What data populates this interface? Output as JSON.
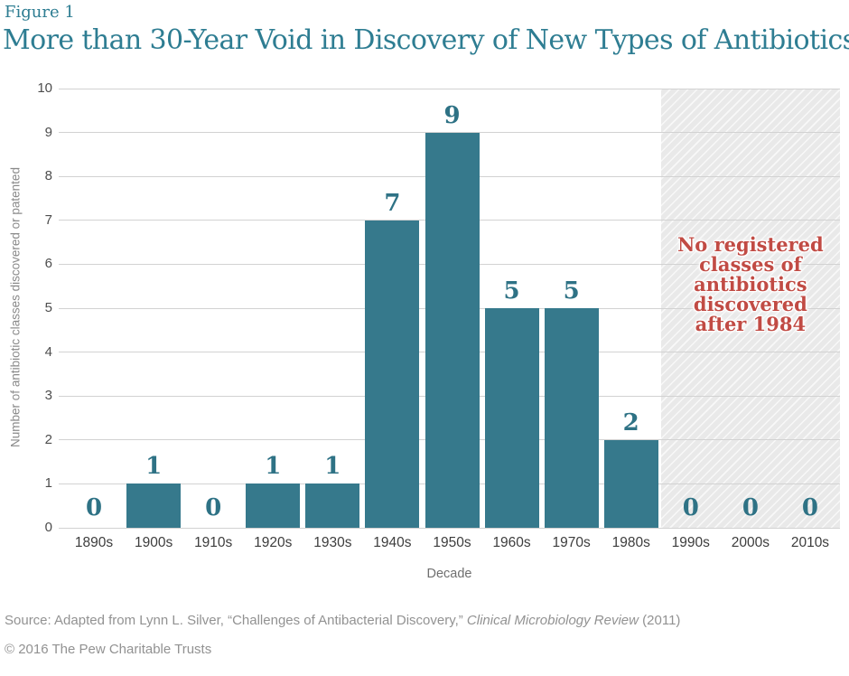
{
  "figure": {
    "label": "Figure 1",
    "title": "More than 30-Year Void in Discovery of New Types of Antibiotics",
    "copyright": "© 2016 The Pew Charitable Trusts"
  },
  "chart_data": {
    "type": "bar",
    "categories": [
      "1890s",
      "1900s",
      "1910s",
      "1920s",
      "1930s",
      "1940s",
      "1950s",
      "1960s",
      "1970s",
      "1980s",
      "1990s",
      "2000s",
      "2010s"
    ],
    "values": [
      0,
      1,
      0,
      1,
      1,
      7,
      9,
      5,
      5,
      2,
      0,
      0,
      0
    ],
    "xlabel": "Decade",
    "ylabel": "Number of antibiotic classes discovered or patented",
    "ylim": [
      0,
      10
    ],
    "yticks": [
      0,
      1,
      2,
      3,
      4,
      5,
      6,
      7,
      8,
      9,
      10
    ],
    "grid": true,
    "legend": "none",
    "colors": {
      "bar": "#36798c",
      "value_label": "#2e7285",
      "gridline": "#d2d2d2",
      "hatch_background": "#e9e9e9",
      "annotation_text": "#c14b44",
      "title_teal": "#2e7d92"
    },
    "annotation": {
      "lines": [
        "No registered",
        "classes of",
        "antibiotics",
        "discovered",
        "after 1984"
      ],
      "region_first_category": "1990s",
      "region_last_category": "2010s"
    }
  },
  "source": {
    "prefix": "Source: Adapted from Lynn L. Silver, “Challenges of Antibacterial Discovery,” ",
    "journal": "Clinical Microbiology Review",
    "suffix": " (2011)"
  }
}
